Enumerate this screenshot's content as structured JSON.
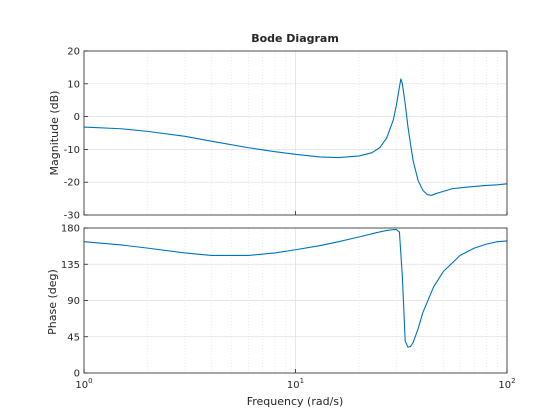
{
  "chart_data": {
    "type": "line",
    "title": "Bode Diagram",
    "xlabel": "Frequency  (rad/s)",
    "xscale": "log",
    "xlim": [
      1,
      100
    ],
    "x_ticks": [
      {
        "value": 1,
        "base": "10",
        "exp": "0"
      },
      {
        "value": 10,
        "base": "10",
        "exp": "1"
      },
      {
        "value": 100,
        "base": "10",
        "exp": "2"
      }
    ],
    "grid": true,
    "colors": {
      "line": "#0072bd",
      "grid": "#dfdfdf",
      "axis": "#262626"
    },
    "panels": [
      {
        "name": "magnitude",
        "ylabel": "Magnitude (dB)",
        "ylim": [
          -30,
          20
        ],
        "y_ticks": [
          "20",
          "10",
          "0",
          "-10",
          "-20",
          "-30"
        ],
        "series": [
          {
            "x": [
              1,
              1.5,
              2,
              3,
              4,
              6,
              8,
              10,
              13,
              16,
              20,
              23,
              25,
              27,
              29,
              30,
              31,
              31.5,
              32,
              33,
              34,
              35,
              36,
              38,
              40,
              42,
              44,
              46,
              50,
              55,
              60,
              70,
              80,
              90,
              100
            ],
            "y": [
              -3.2,
              -3.7,
              -4.5,
              -6,
              -7.5,
              -9.5,
              -10.7,
              -11.5,
              -12.3,
              -12.5,
              -12,
              -11,
              -9.5,
              -6.5,
              -1,
              3.5,
              9,
              11.5,
              10,
              4,
              -3,
              -8.5,
              -13.5,
              -19.5,
              -22.5,
              -23.8,
              -24,
              -23.5,
              -22.8,
              -22,
              -21.7,
              -21.3,
              -21,
              -20.8,
              -20.5
            ]
          }
        ]
      },
      {
        "name": "phase",
        "ylabel": "Phase (deg)",
        "ylim": [
          0,
          180
        ],
        "y_ticks": [
          "180",
          "135",
          "90",
          "45",
          "0"
        ],
        "series": [
          {
            "x": [
              1,
              1.5,
              2,
              3,
              4,
              6,
              8,
              10,
              13,
              16,
              20,
              24,
              27,
              29,
              30,
              31,
              32,
              33,
              34,
              35,
              36,
              38,
              40,
              45,
              50,
              60,
              70,
              80,
              90,
              100
            ],
            "y": [
              163,
              159,
              155,
              149,
              146,
              146,
              149,
              153,
              158,
              163,
              169,
              174,
              177,
              178,
              178,
              175,
              120,
              40,
              32,
              33,
              38,
              55,
              75,
              107,
              126,
              146,
              155,
              160,
              163,
              164
            ]
          }
        ]
      }
    ]
  }
}
